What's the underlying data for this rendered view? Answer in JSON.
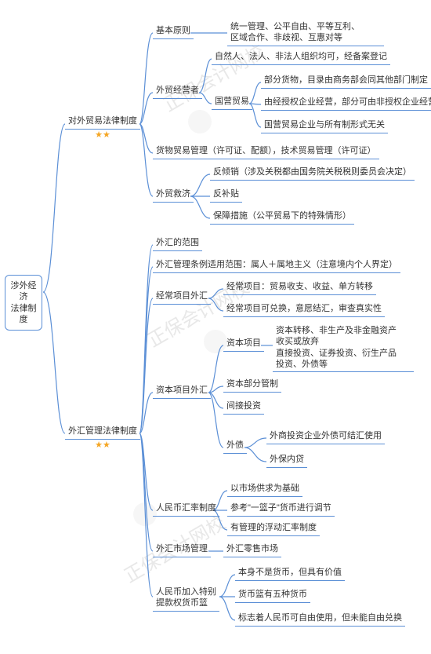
{
  "colors": {
    "line": "#5b8fd6",
    "star": "#f5a623",
    "text": "#333333",
    "bg": "#ffffff",
    "watermark": "#e8e8e8"
  },
  "fontsize": 11,
  "root": {
    "label": "涉外经济\n法律制度"
  },
  "l1": {
    "foreign_trade": {
      "label": "对外贸易法律制度",
      "stars": "★★"
    },
    "forex": {
      "label": "外汇管理法律制度",
      "stars": "★★"
    }
  },
  "trade": {
    "basic": {
      "label": "基本原则",
      "detail": "统一管理、公平自由、平等互利、\n区域合作、非歧视、互惠对等"
    },
    "operator": {
      "label": "外贸经营者",
      "d1": "自然人、法人、非法人组织均可，经备案登记",
      "state": {
        "label": "国营贸易",
        "d1": "部分货物，目录由商务部会同其他部门制定",
        "d2": "由经授权企业经营，部分可由非授权企业经营",
        "d3": "国营贸易企业与所有制形式无关"
      }
    },
    "goods": {
      "label": "货物贸易管理（许可证、配额），技术贸易管理（许可证）"
    },
    "remedy": {
      "label": "外贸救济",
      "d1": "反倾销（涉及关税都由国务院关税税则委员会决定）",
      "d2": "反补贴",
      "d3": "保障措施（公平贸易下的特殊情形）"
    }
  },
  "forex": {
    "scope": "外汇的范围",
    "regscope": "外汇管理条例适用范围：属人＋属地主义（注意境内个人界定）",
    "current": {
      "label": "经常项目外汇",
      "d1": "经常项目：贸易收支、收益、单方转移",
      "d2": "经常项目可兑换，意愿结汇，审查真实性"
    },
    "capital": {
      "label": "资本项目外汇",
      "items": {
        "label": "资本项目",
        "detail": "资本转移、非生产及非金融资产\n收买或放弃\n直接投资、证券投资、衍生产品\n投资、外债等"
      },
      "d2": "资本部分管制",
      "d3": "间接投资",
      "debt": {
        "label": "外债",
        "d1": "外商投资企业外债可结汇使用",
        "d2": "外保内贷"
      }
    },
    "rate": {
      "label": "人民币汇率制度",
      "d1": "以市场供求为基础",
      "d2": "参考\"一篮子\"货币进行调节",
      "d3": "有管理的浮动汇率制度"
    },
    "market": {
      "label": "外汇市场管理",
      "d1": "外汇零售市场"
    },
    "sdr": {
      "label": "人民币加入特别\n提款权货币篮",
      "d1": "本身不是货币，但具有价值",
      "d2": "货币篮有五种货币",
      "d3": "标志着人民币可自由使用，但未能自由兑换"
    }
  },
  "watermark_text": "正保会计网校"
}
